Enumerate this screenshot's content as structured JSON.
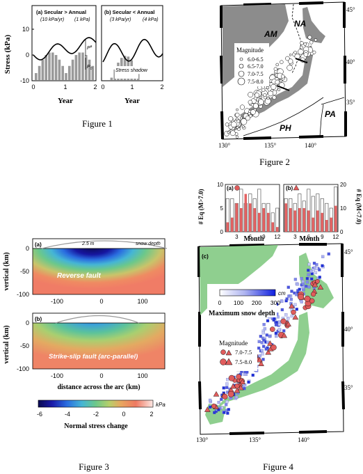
{
  "figure1": {
    "caption": "Figure 1",
    "ylabel": "Stress (kPa)",
    "xlabel": "Year",
    "panel_a": {
      "title": "(a) Secular > Annual",
      "rate1": "(10 kPa/yr)",
      "rate2": "(1 kPa)",
      "p_label": "P",
      "p0_label": "P",
      "p0_sub": "0",
      "pa_sub": "a"
    },
    "panel_b": {
      "title": "(b) Secular < Annual",
      "rate1": "(3 kPa/yr)",
      "rate2": "(4 kPa)",
      "shadow_label": "Stress shadow"
    },
    "yticks": [
      "10",
      "0",
      "-10"
    ],
    "xticks": [
      "0",
      "1",
      "2"
    ]
  },
  "figure2": {
    "caption": "Figure 2",
    "plates": [
      "AM",
      "NA",
      "PA",
      "PH"
    ],
    "legend_title": "Magnitude",
    "legend_items": [
      "6.0-6.5",
      "6.5-7.0",
      "7.0-7.5",
      "7.5-8.0"
    ],
    "lat_labels": [
      "45°",
      "40°",
      "35°"
    ],
    "lon_labels": [
      "130°",
      "135°",
      "140°"
    ]
  },
  "figure3": {
    "caption": "Figure 3",
    "panel_a": {
      "tag": "(a)",
      "snow_label": "2.5 m",
      "snow_caption": "snow depth",
      "fault": "Reverse fault"
    },
    "panel_b": {
      "tag": "(b)",
      "fault": "Strike-slip fault (arc-parallel)"
    },
    "ylabel": "vertical (km)",
    "xlabel": "distance across the arc (km)",
    "yticks": [
      "0",
      "-50",
      "-100"
    ],
    "xticks": [
      "-100",
      "0",
      "100"
    ],
    "colorbar": {
      "unit": "kPa",
      "ticks": [
        "-6",
        "-4",
        "-2",
        "0",
        "2"
      ],
      "label": "Normal stress change"
    }
  },
  "figure4": {
    "caption": "Figure 4",
    "panel_c_tag": "(c)",
    "snow_unit": "cm",
    "snow_ticks": [
      "0",
      "100",
      "200",
      "300"
    ],
    "snow_title": "Maximum snow depth",
    "legend_title": "Magnitude",
    "legend_items": [
      "7.0-7.5",
      "7.5-8.0"
    ],
    "lat_labels": [
      "45°",
      "40°",
      "35°"
    ],
    "lon_labels": [
      "130°",
      "135°",
      "140°"
    ]
  },
  "chart_data": [
    {
      "type": "bar",
      "title": "(a)",
      "xlabel": "Month",
      "ylabel": "# Eq (M>7.0)",
      "categories": [
        "1",
        "2",
        "3",
        "4",
        "5",
        "6",
        "7",
        "8",
        "9",
        "10",
        "11",
        "12"
      ],
      "series": [
        {
          "values": [
            2,
            3,
            6,
            5,
            8,
            6,
            5,
            4,
            5,
            4,
            2,
            1
          ]
        },
        {
          "values": [
            7,
            7,
            6,
            9,
            6,
            8,
            7,
            9,
            6,
            6,
            4,
            5
          ]
        }
      ],
      "xticks": [
        "3",
        "6",
        "9",
        "12"
      ],
      "ylim": [
        0,
        10
      ],
      "yticks": [
        "0",
        "5",
        "10"
      ]
    },
    {
      "type": "bar",
      "title": "(b)",
      "xlabel": "Month",
      "ylabel": "# Eq (M<7.0)",
      "categories": [
        "1",
        "2",
        "3",
        "4",
        "5",
        "6",
        "7",
        "8",
        "9",
        "10",
        "11",
        "12"
      ],
      "series": [
        {
          "values": [
            12,
            10,
            9,
            10,
            10,
            9,
            6,
            9,
            8,
            5,
            6,
            11
          ]
        },
        {
          "values": [
            14,
            14,
            12,
            16,
            13,
            18,
            15,
            16,
            14,
            12,
            10,
            19
          ]
        }
      ],
      "xticks": [
        "3",
        "6",
        "9",
        "12"
      ],
      "ylim": [
        0,
        20
      ],
      "yticks": [
        "0",
        "10",
        "20"
      ]
    }
  ]
}
